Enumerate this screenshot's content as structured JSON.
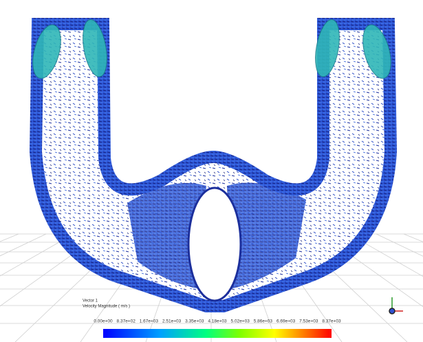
{
  "legend": {
    "title": "Vector 1",
    "variable": "Velocity Magnitude ( m/s )",
    "labels": [
      "0.00e+00",
      "8.37e+02",
      "1.67e+03",
      "2.51e+03",
      "3.35e+03",
      "4.18e+03",
      "5.02e+03",
      "5.86e+03",
      "6.69e+03",
      "7.53e+03",
      "8.37e+03"
    ]
  }
}
